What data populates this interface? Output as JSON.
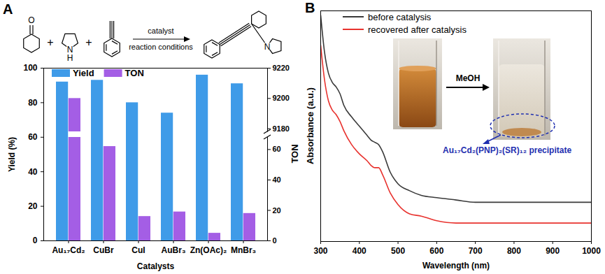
{
  "chart_data": [
    {
      "type": "bar",
      "title": "A",
      "x_label": "Catalysts",
      "y_label": "Yield (%)",
      "y2_label": "TON",
      "categories": [
        "Au₁₇Cd₂",
        "CuBr",
        "CuI",
        "AuBr₃",
        "Zn(OAc)₂",
        "MnBr₃"
      ],
      "series": [
        {
          "name": "Yield",
          "color": "#3f9be8",
          "values": [
            92,
            93,
            80,
            74,
            96,
            91
          ]
        },
        {
          "name": "TON",
          "color": "#a45ee5",
          "axis": "y2",
          "values": [
            9200,
            62,
            16,
            19,
            5,
            18
          ]
        }
      ],
      "ylim": [
        0,
        100
      ],
      "yticks": [
        0,
        20,
        40,
        60,
        80,
        100
      ],
      "y2lim": [
        0,
        9220
      ],
      "y2ticks": [
        0,
        20,
        40,
        60,
        9180,
        9200,
        9220
      ],
      "y2break": [
        68,
        9178
      ],
      "legend": "top-left"
    },
    {
      "type": "line",
      "title": "B",
      "x_label": "Wavelength (nm)",
      "y_label": "Absorbance (a.u.)",
      "xlim": [
        300,
        1000
      ],
      "xticks": [
        300,
        400,
        500,
        600,
        700,
        800,
        900,
        1000
      ],
      "ylim": [
        0,
        1
      ],
      "tick_labels": "x",
      "legend": "top-left",
      "x": [
        300,
        310,
        320,
        330,
        340,
        350,
        360,
        380,
        400,
        420,
        430,
        440,
        450,
        460,
        480,
        500,
        530,
        560,
        600,
        650,
        700,
        800,
        900,
        1000
      ],
      "series": [
        {
          "name": "before catalysis",
          "color": "#3a3a3a",
          "values": [
            0.98,
            0.82,
            0.73,
            0.69,
            0.67,
            0.64,
            0.59,
            0.54,
            0.5,
            0.46,
            0.44,
            0.43,
            0.42,
            0.39,
            0.3,
            0.25,
            0.22,
            0.2,
            0.19,
            0.18,
            0.17,
            0.17,
            0.17,
            0.17
          ]
        },
        {
          "name": "recovered after catalysis",
          "color": "#e8322e",
          "values": [
            0.85,
            0.7,
            0.61,
            0.57,
            0.55,
            0.52,
            0.48,
            0.42,
            0.38,
            0.35,
            0.33,
            0.32,
            0.32,
            0.29,
            0.21,
            0.16,
            0.12,
            0.11,
            0.09,
            0.08,
            0.08,
            0.08,
            0.08,
            0.08
          ]
        }
      ],
      "annotations": [
        {
          "text": "MeOH",
          "color": "#000000"
        },
        {
          "text": "Au₁₇Cd₂(PNP)₂(SR)₁₂ precipitate",
          "color": "#1f2fb0"
        }
      ]
    }
  ],
  "scheme": {
    "plus": "+",
    "catalyst": "catalyst",
    "conditions": "reaction conditions",
    "atoms": {
      "oxygen": "O",
      "nitrogen": "N",
      "hydrogen": "H"
    }
  }
}
